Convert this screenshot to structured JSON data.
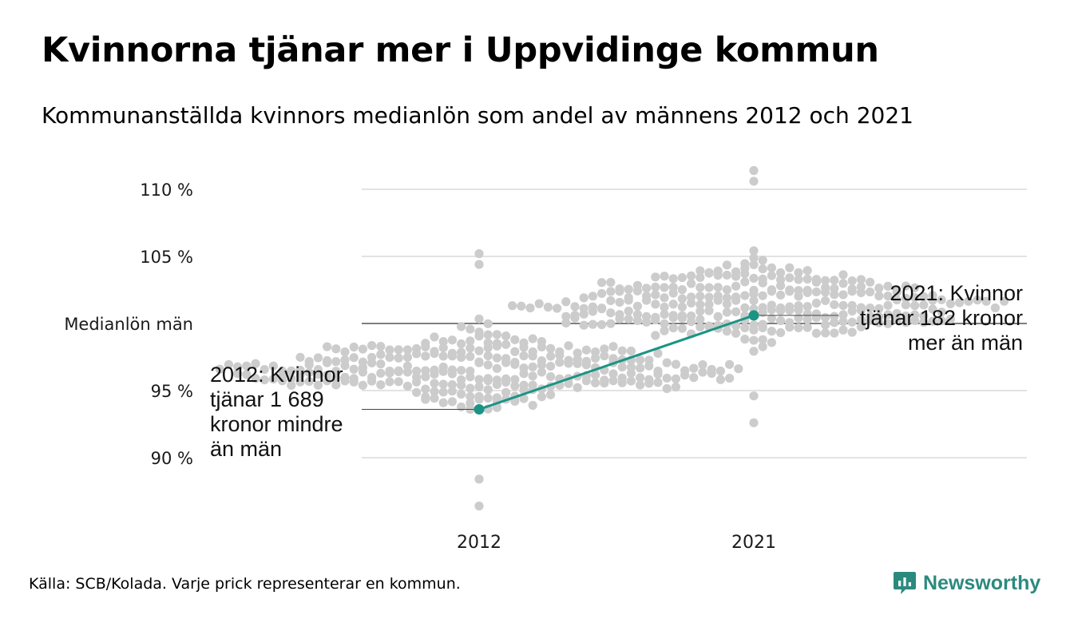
{
  "header": {
    "title": "Kvinnorna tjänar mer i Uppvidinge kommun",
    "subtitle": "Kommunanställda kvinnors medianlön som andel av männens 2012 och 2021"
  },
  "footer": {
    "source": "Källa: SCB/Kolada. Varje prick representerar en kommun.",
    "brand": "Newsworthy"
  },
  "colors": {
    "dots": "#cccccc",
    "highlight": "#1a9485",
    "grid": "#e3e3e3",
    "baseline": "#333333",
    "brand": "#2b8a7e"
  },
  "chart_data": {
    "type": "scatter",
    "subtype": "beeswarm",
    "categories": [
      "2012",
      "2021"
    ],
    "y_tick_labels": [
      "110 %",
      "105 %",
      "Medianlön män",
      "95 %",
      "90 %"
    ],
    "y_ticks": [
      110,
      105,
      100,
      95,
      90
    ],
    "ylim": [
      86,
      111.5
    ],
    "grid": true,
    "reference_line": {
      "value": 100,
      "label": "Medianlön män"
    },
    "highlight": {
      "values": [
        93.6,
        100.6
      ],
      "annotations": [
        {
          "category": "2012",
          "lines": [
            "2012: Kvinnor",
            "tjänar 1 689",
            "kronor mindre",
            "än män"
          ]
        },
        {
          "category": "2021",
          "lines": [
            "2021: Kvinnor",
            "tjänar 182 kronor",
            "mer än män"
          ]
        }
      ]
    },
    "distribution": {
      "2012": {
        "min": 86.4,
        "max": 105.2,
        "median": 96.6
      },
      "2021": {
        "min": 92.6,
        "max": 111.4,
        "median": 101.5
      }
    }
  }
}
